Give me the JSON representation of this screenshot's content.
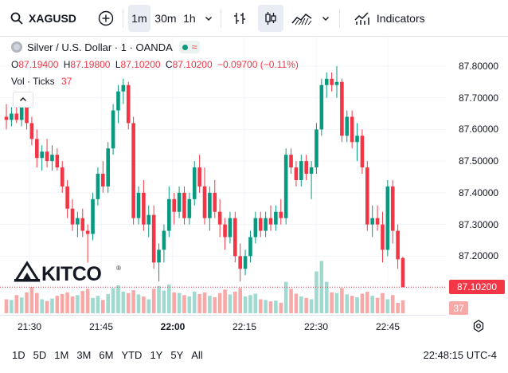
{
  "toolbar": {
    "symbol": "XAGUSD",
    "intervals": [
      "1m",
      "30m",
      "1h"
    ],
    "indicators_label": "Indicators"
  },
  "legend": {
    "title": "Silver / U.S. Dollar · 1 · OANDA",
    "open_label": "O",
    "open": "87.19400",
    "high_label": "H",
    "high": "87.19800",
    "low_label": "L",
    "low": "87.10200",
    "close_label": "C",
    "close": "87.10200",
    "change": "−0.09700 (−0.11%)",
    "volume_label": "Vol · Ticks",
    "volume": "37"
  },
  "price_axis": {
    "labels": [
      "87.80000",
      "87.70000",
      "87.60000",
      "87.50000",
      "87.40000",
      "87.30000",
      "87.20000",
      "87.10000"
    ],
    "current_price": "87.10200",
    "current_volume": "37"
  },
  "time_axis": {
    "labels": [
      "21:30",
      "21:45",
      "22:00",
      "22:15",
      "22:30",
      "22:45"
    ]
  },
  "watermark": {
    "text": "KITCO"
  },
  "bottom": {
    "ranges": [
      "1D",
      "5D",
      "1M",
      "3M",
      "6M",
      "YTD",
      "1Y",
      "5Y",
      "All"
    ],
    "clock": "22:48:15 UTC-4"
  },
  "colors": {
    "up": "#089981",
    "down": "#f23645",
    "up_volume": "#9fd9cf",
    "down_volume": "#f7a9a7"
  },
  "chart_data": {
    "type": "candlestick",
    "ylim": [
      87.06,
      87.84
    ],
    "volume_max": 160,
    "candles": [
      {
        "o": 87.64,
        "h": 87.68,
        "l": 87.6,
        "c": 87.63,
        "v": 40
      },
      {
        "o": 87.63,
        "h": 87.67,
        "l": 87.61,
        "c": 87.65,
        "v": 38
      },
      {
        "o": 87.65,
        "h": 87.68,
        "l": 87.62,
        "c": 87.63,
        "v": 52
      },
      {
        "o": 87.63,
        "h": 87.7,
        "l": 87.61,
        "c": 87.67,
        "v": 45
      },
      {
        "o": 87.67,
        "h": 87.69,
        "l": 87.6,
        "c": 87.62,
        "v": 60
      },
      {
        "o": 87.62,
        "h": 87.64,
        "l": 87.55,
        "c": 87.57,
        "v": 75
      },
      {
        "o": 87.57,
        "h": 87.6,
        "l": 87.48,
        "c": 87.51,
        "v": 58
      },
      {
        "o": 87.51,
        "h": 87.55,
        "l": 87.47,
        "c": 87.53,
        "v": 40
      },
      {
        "o": 87.53,
        "h": 87.57,
        "l": 87.48,
        "c": 87.5,
        "v": 35
      },
      {
        "o": 87.5,
        "h": 87.55,
        "l": 87.47,
        "c": 87.52,
        "v": 42
      },
      {
        "o": 87.52,
        "h": 87.54,
        "l": 87.47,
        "c": 87.48,
        "v": 50
      },
      {
        "o": 87.48,
        "h": 87.5,
        "l": 87.4,
        "c": 87.42,
        "v": 55
      },
      {
        "o": 87.42,
        "h": 87.44,
        "l": 87.32,
        "c": 87.35,
        "v": 60
      },
      {
        "o": 87.35,
        "h": 87.38,
        "l": 87.28,
        "c": 87.3,
        "v": 48
      },
      {
        "o": 87.3,
        "h": 87.34,
        "l": 87.26,
        "c": 87.32,
        "v": 52
      },
      {
        "o": 87.32,
        "h": 87.35,
        "l": 87.26,
        "c": 87.28,
        "v": 64
      },
      {
        "o": 87.28,
        "h": 87.3,
        "l": 87.18,
        "c": 87.27,
        "v": 70
      },
      {
        "o": 87.27,
        "h": 87.4,
        "l": 87.25,
        "c": 87.38,
        "v": 44
      },
      {
        "o": 87.38,
        "h": 87.48,
        "l": 87.36,
        "c": 87.46,
        "v": 50
      },
      {
        "o": 87.46,
        "h": 87.5,
        "l": 87.4,
        "c": 87.42,
        "v": 38
      },
      {
        "o": 87.42,
        "h": 87.56,
        "l": 87.4,
        "c": 87.54,
        "v": 55
      },
      {
        "o": 87.54,
        "h": 87.68,
        "l": 87.52,
        "c": 87.66,
        "v": 72
      },
      {
        "o": 87.66,
        "h": 87.74,
        "l": 87.62,
        "c": 87.72,
        "v": 80
      },
      {
        "o": 87.72,
        "h": 87.76,
        "l": 87.68,
        "c": 87.74,
        "v": 62
      },
      {
        "o": 87.74,
        "h": 87.75,
        "l": 87.6,
        "c": 87.62,
        "v": 58
      },
      {
        "o": 87.62,
        "h": 87.64,
        "l": 87.3,
        "c": 87.32,
        "v": 66
      },
      {
        "o": 87.32,
        "h": 87.42,
        "l": 87.3,
        "c": 87.4,
        "v": 54
      },
      {
        "o": 87.4,
        "h": 87.44,
        "l": 87.28,
        "c": 87.3,
        "v": 48
      },
      {
        "o": 87.3,
        "h": 87.36,
        "l": 87.26,
        "c": 87.33,
        "v": 40
      },
      {
        "o": 87.33,
        "h": 87.36,
        "l": 87.16,
        "c": 87.18,
        "v": 70
      },
      {
        "o": 87.18,
        "h": 87.24,
        "l": 87.12,
        "c": 87.22,
        "v": 78
      },
      {
        "o": 87.22,
        "h": 87.3,
        "l": 87.18,
        "c": 87.28,
        "v": 65
      },
      {
        "o": 87.28,
        "h": 87.42,
        "l": 87.26,
        "c": 87.38,
        "v": 82
      },
      {
        "o": 87.38,
        "h": 87.4,
        "l": 87.3,
        "c": 87.34,
        "v": 60
      },
      {
        "o": 87.34,
        "h": 87.42,
        "l": 87.32,
        "c": 87.4,
        "v": 58
      },
      {
        "o": 87.4,
        "h": 87.42,
        "l": 87.3,
        "c": 87.32,
        "v": 52
      },
      {
        "o": 87.32,
        "h": 87.4,
        "l": 87.3,
        "c": 87.38,
        "v": 48
      },
      {
        "o": 87.38,
        "h": 87.5,
        "l": 87.36,
        "c": 87.48,
        "v": 62
      },
      {
        "o": 87.48,
        "h": 87.52,
        "l": 87.4,
        "c": 87.42,
        "v": 55
      },
      {
        "o": 87.42,
        "h": 87.48,
        "l": 87.3,
        "c": 87.32,
        "v": 60
      },
      {
        "o": 87.32,
        "h": 87.42,
        "l": 87.28,
        "c": 87.4,
        "v": 50
      },
      {
        "o": 87.4,
        "h": 87.44,
        "l": 87.32,
        "c": 87.34,
        "v": 46
      },
      {
        "o": 87.34,
        "h": 87.38,
        "l": 87.26,
        "c": 87.3,
        "v": 58
      },
      {
        "o": 87.3,
        "h": 87.32,
        "l": 87.22,
        "c": 87.26,
        "v": 68
      },
      {
        "o": 87.26,
        "h": 87.34,
        "l": 87.24,
        "c": 87.32,
        "v": 54
      },
      {
        "o": 87.32,
        "h": 87.34,
        "l": 87.18,
        "c": 87.2,
        "v": 62
      },
      {
        "o": 87.2,
        "h": 87.24,
        "l": 87.12,
        "c": 87.16,
        "v": 72
      },
      {
        "o": 87.16,
        "h": 87.22,
        "l": 87.14,
        "c": 87.2,
        "v": 48
      },
      {
        "o": 87.2,
        "h": 87.28,
        "l": 87.18,
        "c": 87.26,
        "v": 52
      },
      {
        "o": 87.26,
        "h": 87.34,
        "l": 87.24,
        "c": 87.32,
        "v": 56
      },
      {
        "o": 87.32,
        "h": 87.34,
        "l": 87.26,
        "c": 87.28,
        "v": 40
      },
      {
        "o": 87.28,
        "h": 87.34,
        "l": 87.26,
        "c": 87.32,
        "v": 38
      },
      {
        "o": 87.32,
        "h": 87.36,
        "l": 87.28,
        "c": 87.3,
        "v": 34
      },
      {
        "o": 87.3,
        "h": 87.36,
        "l": 87.28,
        "c": 87.34,
        "v": 36
      },
      {
        "o": 87.34,
        "h": 87.38,
        "l": 87.3,
        "c": 87.32,
        "v": 30
      },
      {
        "o": 87.32,
        "h": 87.54,
        "l": 87.3,
        "c": 87.52,
        "v": 90
      },
      {
        "o": 87.52,
        "h": 87.54,
        "l": 87.46,
        "c": 87.48,
        "v": 70
      },
      {
        "o": 87.48,
        "h": 87.5,
        "l": 87.42,
        "c": 87.44,
        "v": 56
      },
      {
        "o": 87.44,
        "h": 87.52,
        "l": 87.42,
        "c": 87.5,
        "v": 48
      },
      {
        "o": 87.5,
        "h": 87.52,
        "l": 87.44,
        "c": 87.46,
        "v": 44
      },
      {
        "o": 87.46,
        "h": 87.5,
        "l": 87.38,
        "c": 87.48,
        "v": 40
      },
      {
        "o": 87.48,
        "h": 87.62,
        "l": 87.46,
        "c": 87.6,
        "v": 120
      },
      {
        "o": 87.6,
        "h": 87.76,
        "l": 87.58,
        "c": 87.74,
        "v": 150
      },
      {
        "o": 87.74,
        "h": 87.78,
        "l": 87.7,
        "c": 87.76,
        "v": 90
      },
      {
        "o": 87.76,
        "h": 87.78,
        "l": 87.72,
        "c": 87.74,
        "v": 60
      },
      {
        "o": 87.74,
        "h": 87.8,
        "l": 87.7,
        "c": 87.75,
        "v": 58
      },
      {
        "o": 87.75,
        "h": 87.76,
        "l": 87.56,
        "c": 87.58,
        "v": 72
      },
      {
        "o": 87.58,
        "h": 87.66,
        "l": 87.56,
        "c": 87.64,
        "v": 54
      },
      {
        "o": 87.64,
        "h": 87.66,
        "l": 87.54,
        "c": 87.56,
        "v": 50
      },
      {
        "o": 87.56,
        "h": 87.62,
        "l": 87.5,
        "c": 87.58,
        "v": 46
      },
      {
        "o": 87.58,
        "h": 87.6,
        "l": 87.46,
        "c": 87.48,
        "v": 56
      },
      {
        "o": 87.48,
        "h": 87.5,
        "l": 87.28,
        "c": 87.3,
        "v": 62
      },
      {
        "o": 87.3,
        "h": 87.36,
        "l": 87.26,
        "c": 87.32,
        "v": 50
      },
      {
        "o": 87.32,
        "h": 87.36,
        "l": 87.28,
        "c": 87.3,
        "v": 44
      },
      {
        "o": 87.3,
        "h": 87.34,
        "l": 87.18,
        "c": 87.22,
        "v": 58
      },
      {
        "o": 87.22,
        "h": 87.44,
        "l": 87.2,
        "c": 87.42,
        "v": 40
      },
      {
        "o": 87.42,
        "h": 87.44,
        "l": 87.24,
        "c": 87.28,
        "v": 52
      },
      {
        "o": 87.28,
        "h": 87.3,
        "l": 87.16,
        "c": 87.19,
        "v": 30
      },
      {
        "o": 87.194,
        "h": 87.198,
        "l": 87.102,
        "c": 87.102,
        "v": 37
      }
    ]
  }
}
